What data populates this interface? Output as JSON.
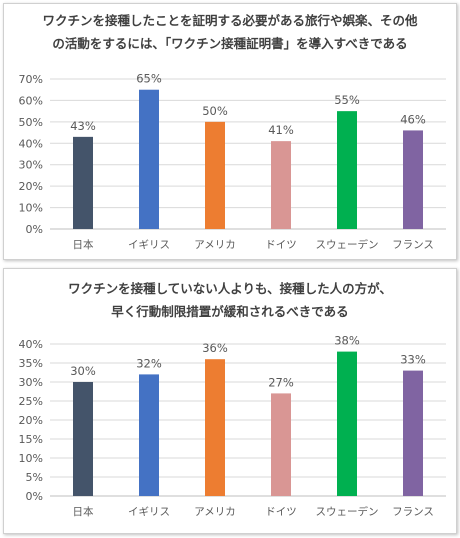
{
  "chart_data": [
    {
      "type": "bar",
      "title_line1": "ワクチンを接種したことを証明する必要がある旅行や娯楽、その他",
      "title_line2": "の活動をするには、「ワクチン接種証明書」を導入すべきである",
      "categories": [
        "日本",
        "イギリス",
        "アメリカ",
        "ドイツ",
        "スウェーデン",
        "フランス"
      ],
      "values": [
        43,
        65,
        50,
        41,
        55,
        46
      ],
      "data_labels": [
        "43%",
        "65%",
        "50%",
        "41%",
        "55%",
        "46%"
      ],
      "colors": [
        "#44546a",
        "#4472c4",
        "#ed7d31",
        "#d99694",
        "#00b050",
        "#8064a2"
      ],
      "ylim": [
        0,
        70
      ],
      "yticks": [
        0,
        10,
        20,
        30,
        40,
        50,
        60,
        70
      ],
      "ytick_labels": [
        "0%",
        "10%",
        "20%",
        "30%",
        "40%",
        "50%",
        "60%",
        "70%"
      ],
      "grid": true
    },
    {
      "type": "bar",
      "title_line1": "ワクチンを接種していない人よりも、接種した人の方が、",
      "title_line2": "早く行動制限措置が緩和されるべきである",
      "categories": [
        "日本",
        "イギリス",
        "アメリカ",
        "ドイツ",
        "スウェーデン",
        "フランス"
      ],
      "values": [
        30,
        32,
        36,
        27,
        38,
        33
      ],
      "data_labels": [
        "30%",
        "32%",
        "36%",
        "27%",
        "38%",
        "33%"
      ],
      "colors": [
        "#44546a",
        "#4472c4",
        "#ed7d31",
        "#d99694",
        "#00b050",
        "#8064a2"
      ],
      "ylim": [
        0,
        40
      ],
      "yticks": [
        0,
        5,
        10,
        15,
        20,
        25,
        30,
        35,
        40
      ],
      "ytick_labels": [
        "0%",
        "5%",
        "10%",
        "15%",
        "20%",
        "25%",
        "30%",
        "35%",
        "40%"
      ],
      "grid": true
    }
  ]
}
